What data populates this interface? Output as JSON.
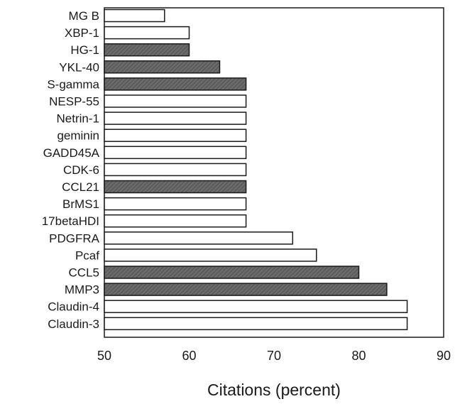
{
  "chart_data": {
    "type": "bar",
    "orientation": "horizontal",
    "title": "",
    "xlabel": "Citations (percent)",
    "ylabel": "",
    "xlim": [
      50,
      90
    ],
    "xticks": [
      50,
      60,
      70,
      80,
      90
    ],
    "grid": false,
    "legend": "none",
    "categories": [
      "MG B",
      "XBP-1",
      "HG-1",
      "YKL-40",
      "S-gamma",
      "NESP-55",
      "Netrin-1",
      "geminin",
      "GADD45A",
      "CDK-6",
      "CCL21",
      "BrMS1",
      "17betaHDI",
      "PDGFRA",
      "Pcaf",
      "CCL5",
      "MMP3",
      "Claudin-4",
      "Claudin-3"
    ],
    "values": [
      57.1,
      60.0,
      60.0,
      63.6,
      66.7,
      66.7,
      66.7,
      66.7,
      66.7,
      66.7,
      66.7,
      66.7,
      66.7,
      72.2,
      75.0,
      80.0,
      83.3,
      85.7,
      85.7
    ],
    "highlighted": [
      false,
      false,
      true,
      true,
      true,
      false,
      false,
      false,
      false,
      false,
      true,
      false,
      false,
      false,
      false,
      true,
      true,
      false,
      false
    ],
    "colors": {
      "bar_fill": "#ffffff",
      "highlight_fill": "#6a6a6a",
      "stroke": "#1a1a1a"
    }
  }
}
